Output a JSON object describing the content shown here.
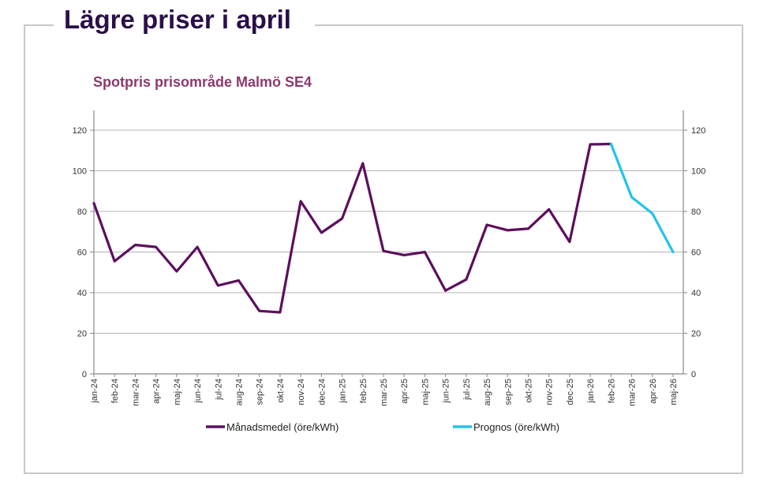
{
  "page": {
    "heading": "Lägre priser i april"
  },
  "colors": {
    "heading": "#2a0f4a",
    "subtitle": "#8b3a6e",
    "actual_line": "#5c0f5c",
    "forecast_line": "#22c4e8",
    "grid": "#b4b4b4",
    "frame": "#c8c8c8"
  },
  "chart_data": {
    "type": "line",
    "title": "Spotpris prisområde Malmö SE4",
    "xlabel": "",
    "ylabel": "",
    "ylim": [
      0,
      130
    ],
    "yticks": [
      0,
      20,
      40,
      60,
      80,
      100,
      120
    ],
    "ytick_labels": [
      "0",
      "20",
      "40",
      "60",
      "80",
      "100",
      "120"
    ],
    "secondary_yticks": [
      0,
      20,
      40,
      60,
      80,
      100,
      120
    ],
    "grid": true,
    "legend_position": "bottom",
    "categories": [
      "jan-24",
      "feb-24",
      "mar-24",
      "apr-24",
      "maj-24",
      "jun-24",
      "jul-24",
      "aug-24",
      "sep-24",
      "okt-24",
      "nov-24",
      "dec-24",
      "jan-25",
      "feb-25",
      "mar-25",
      "apr-25",
      "maj-25",
      "jun-25",
      "jul-25",
      "aug-25",
      "sep-25",
      "okt-25",
      "nov-25",
      "dec-25",
      "jan-26",
      "feb-26",
      "mar-26",
      "apr-26",
      "maj-26"
    ],
    "series": [
      {
        "name": "Månadsmedel (öre/kWh)",
        "color": "#5c0f5c",
        "values": [
          84,
          55.5,
          63.5,
          62.5,
          50.5,
          62.5,
          43.5,
          46,
          31,
          30.3,
          85,
          69.5,
          76.5,
          103.7,
          60.5,
          58.5,
          60,
          41,
          46.5,
          73.4,
          70.7,
          71.5,
          81,
          65,
          113,
          113.2,
          null,
          null,
          null
        ]
      },
      {
        "name": "Prognos (öre/kWh)",
        "color": "#22c4e8",
        "values": [
          null,
          null,
          null,
          null,
          null,
          null,
          null,
          null,
          null,
          null,
          null,
          null,
          null,
          null,
          null,
          null,
          null,
          null,
          null,
          null,
          null,
          null,
          null,
          null,
          null,
          113.2,
          87,
          79,
          60
        ]
      }
    ]
  }
}
